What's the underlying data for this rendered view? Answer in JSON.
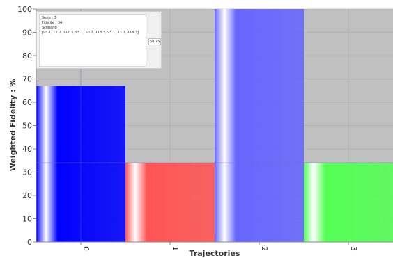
{
  "chart_data": {
    "type": "bar",
    "categories": [
      "0",
      "1",
      "2",
      "3"
    ],
    "values": [
      67,
      34,
      100,
      34
    ],
    "bar_colors": [
      "#0000ff",
      "#ff5555",
      "#6666ff",
      "#55ff55"
    ],
    "bar_highlight": "#ffffff",
    "xlabel": "Trajectories",
    "ylabel": "Weighted Fidelity : %",
    "ylim": [
      0,
      100
    ],
    "yticks": [
      0,
      10,
      20,
      30,
      40,
      50,
      60,
      70,
      80,
      90,
      100
    ],
    "grid": true,
    "plot_background": "#c0c0c0",
    "grid_color": "#a8a8a8",
    "reference_line": 34,
    "crosshair_x": 0.5
  },
  "tooltip": {
    "line1": "Serie : 3",
    "line2": "Fidélité : 34",
    "line3": "Scénario :",
    "line4": "[95.1, 11.2, 117.3, 95.1, 10.2, 118.3, 95.1, 12.2, 118.3]",
    "side_value": "58.75"
  }
}
